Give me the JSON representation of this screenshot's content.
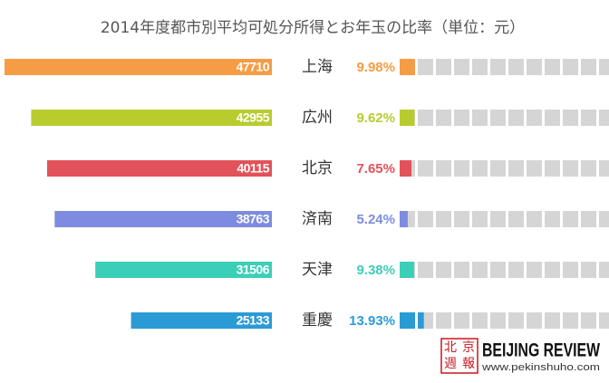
{
  "chart_data": {
    "type": "butterfly-waffle",
    "title": "2014年度都市別平均可処分所得とお年玉の比率（単位：元）",
    "categories": [
      "上海",
      "広州",
      "北京",
      "済南",
      "天津",
      "重慶"
    ],
    "series": [
      {
        "name": null,
        "values": [
          47710,
          42955,
          40115,
          38763,
          31506,
          25133
        ]
      },
      {
        "name": null,
        "values": [
          9.98,
          9.62,
          7.65,
          5.24,
          9.38,
          13.93
        ],
        "value_labels": [
          "9.98%",
          "9.62%",
          "7.65%",
          "5.24%",
          "9.38%",
          "13.93%"
        ]
      }
    ],
    "colors": [
      "#f59c45",
      "#b8cc2e",
      "#e2525a",
      "#7d8ce0",
      "#3ccfb8",
      "#2b9bd6"
    ],
    "ratio_scale": {
      "cell": 10,
      "cells": 12
    },
    "logo": {
      "mark": [
        "北",
        "京",
        "週",
        "報"
      ],
      "name": "BEIJING REVIEW",
      "url": "www.pekinshuho.com"
    }
  }
}
